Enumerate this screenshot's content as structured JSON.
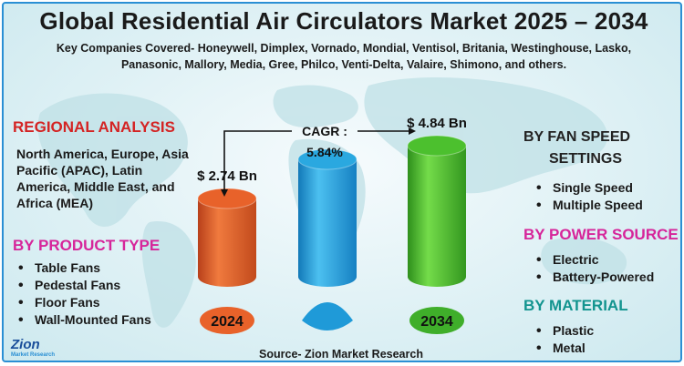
{
  "title": "Global Residential Air Circulators Market 2025 – 2034",
  "companies": "Key Companies Covered- Honeywell, Dimplex, Vornado, Mondial, Ventisol, Britania, Westinghouse, Lasko, Panasonic, Mallory, Media, Gree, Philco, Venti-Delta, Valaire, Shimono, and others.",
  "regional": {
    "heading": "REGIONAL ANALYSIS",
    "text": "North America, Europe, Asia Pacific (APAC), Latin America, Middle East, and Africa (MEA)"
  },
  "product_type": {
    "heading": "BY PRODUCT TYPE",
    "items": [
      "Table Fans",
      "Pedestal Fans",
      "Floor Fans",
      "Wall-Mounted Fans"
    ]
  },
  "fan_speed": {
    "heading_line1": "BY FAN SPEED",
    "heading_line2": "SETTINGS",
    "items": [
      "Single Speed",
      "Multiple Speed"
    ]
  },
  "power_source": {
    "heading": "BY POWER SOURCE",
    "items": [
      "Electric",
      "Battery-Powered"
    ]
  },
  "material": {
    "heading": "BY MATERIAL",
    "items": [
      "Plastic",
      "Metal"
    ]
  },
  "source": "Source- Zion Market Research",
  "logo": {
    "word": "Zion",
    "sub": "Market Research"
  },
  "chart_data": {
    "type": "bar",
    "categories": [
      "2024",
      "",
      "2034"
    ],
    "values": [
      2.74,
      null,
      4.84
    ],
    "value_labels": [
      "$ 2.74 Bn",
      "",
      "$ 4.84 Bn"
    ],
    "cagr_label": "CAGR :",
    "cagr_value": "5.84%",
    "colors": [
      "#e8622a",
      "#2aa8e0",
      "#4cc02e"
    ],
    "label_colors": [
      "#e8622a",
      "#1f9ad8",
      "#3fae2a"
    ]
  }
}
